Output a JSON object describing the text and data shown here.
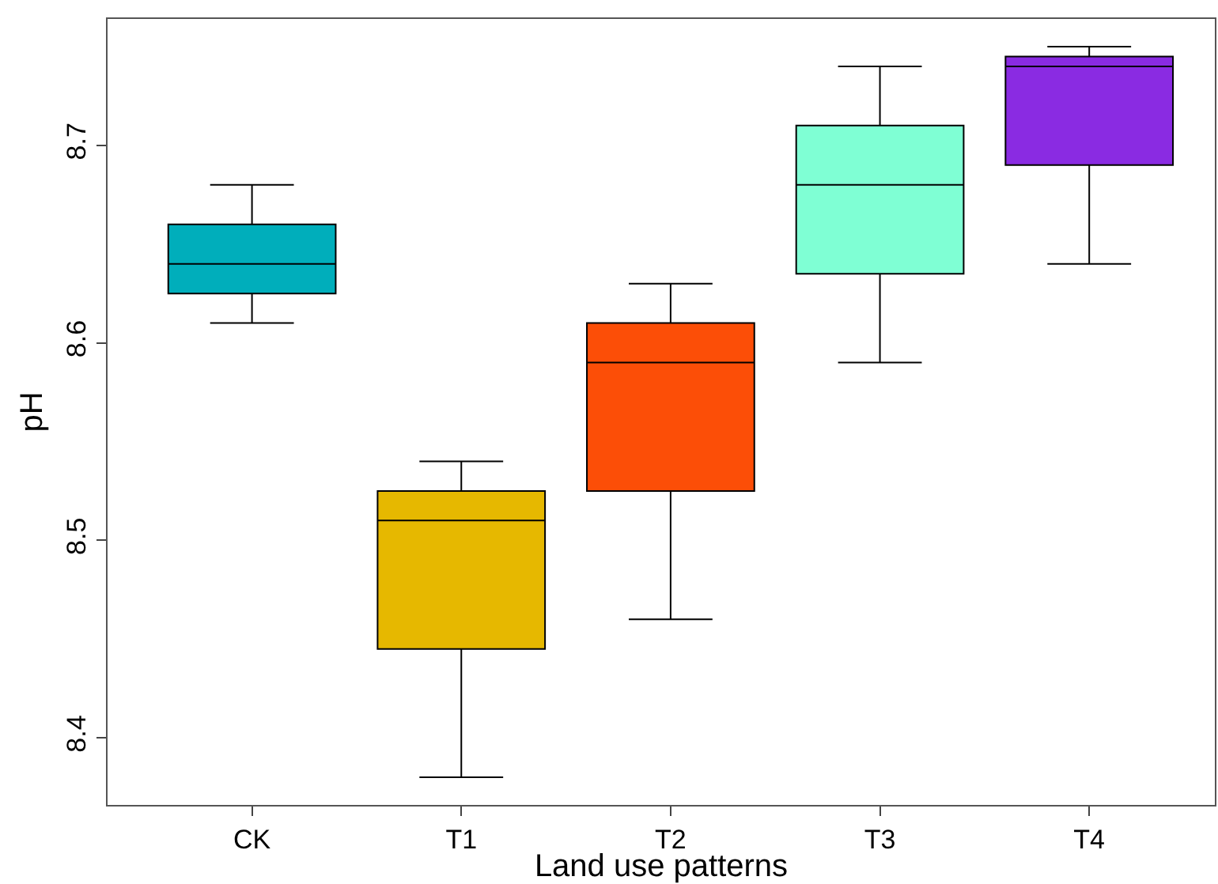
{
  "chart_data": {
    "type": "box",
    "xlabel": "Land use patterns",
    "ylabel": "pH",
    "categories": [
      "CK",
      "T1",
      "T2",
      "T3",
      "T4"
    ],
    "colors": [
      "#00aebb",
      "#e6b800",
      "#fc4e07",
      "#7fffd4",
      "#8a2be2"
    ],
    "boxes": [
      {
        "low": 8.61,
        "q1": 8.625,
        "median": 8.64,
        "q3": 8.66,
        "high": 8.68
      },
      {
        "low": 8.38,
        "q1": 8.445,
        "median": 8.51,
        "q3": 8.525,
        "high": 8.54
      },
      {
        "low": 8.46,
        "q1": 8.525,
        "median": 8.59,
        "q3": 8.61,
        "high": 8.63
      },
      {
        "low": 8.59,
        "q1": 8.635,
        "median": 8.68,
        "q3": 8.71,
        "high": 8.74
      },
      {
        "low": 8.64,
        "q1": 8.69,
        "median": 8.74,
        "q3": 8.745,
        "high": 8.75
      }
    ],
    "ylim": [
      8.366,
      8.764
    ],
    "yticks": [
      8.4,
      8.5,
      8.6,
      8.7
    ]
  }
}
